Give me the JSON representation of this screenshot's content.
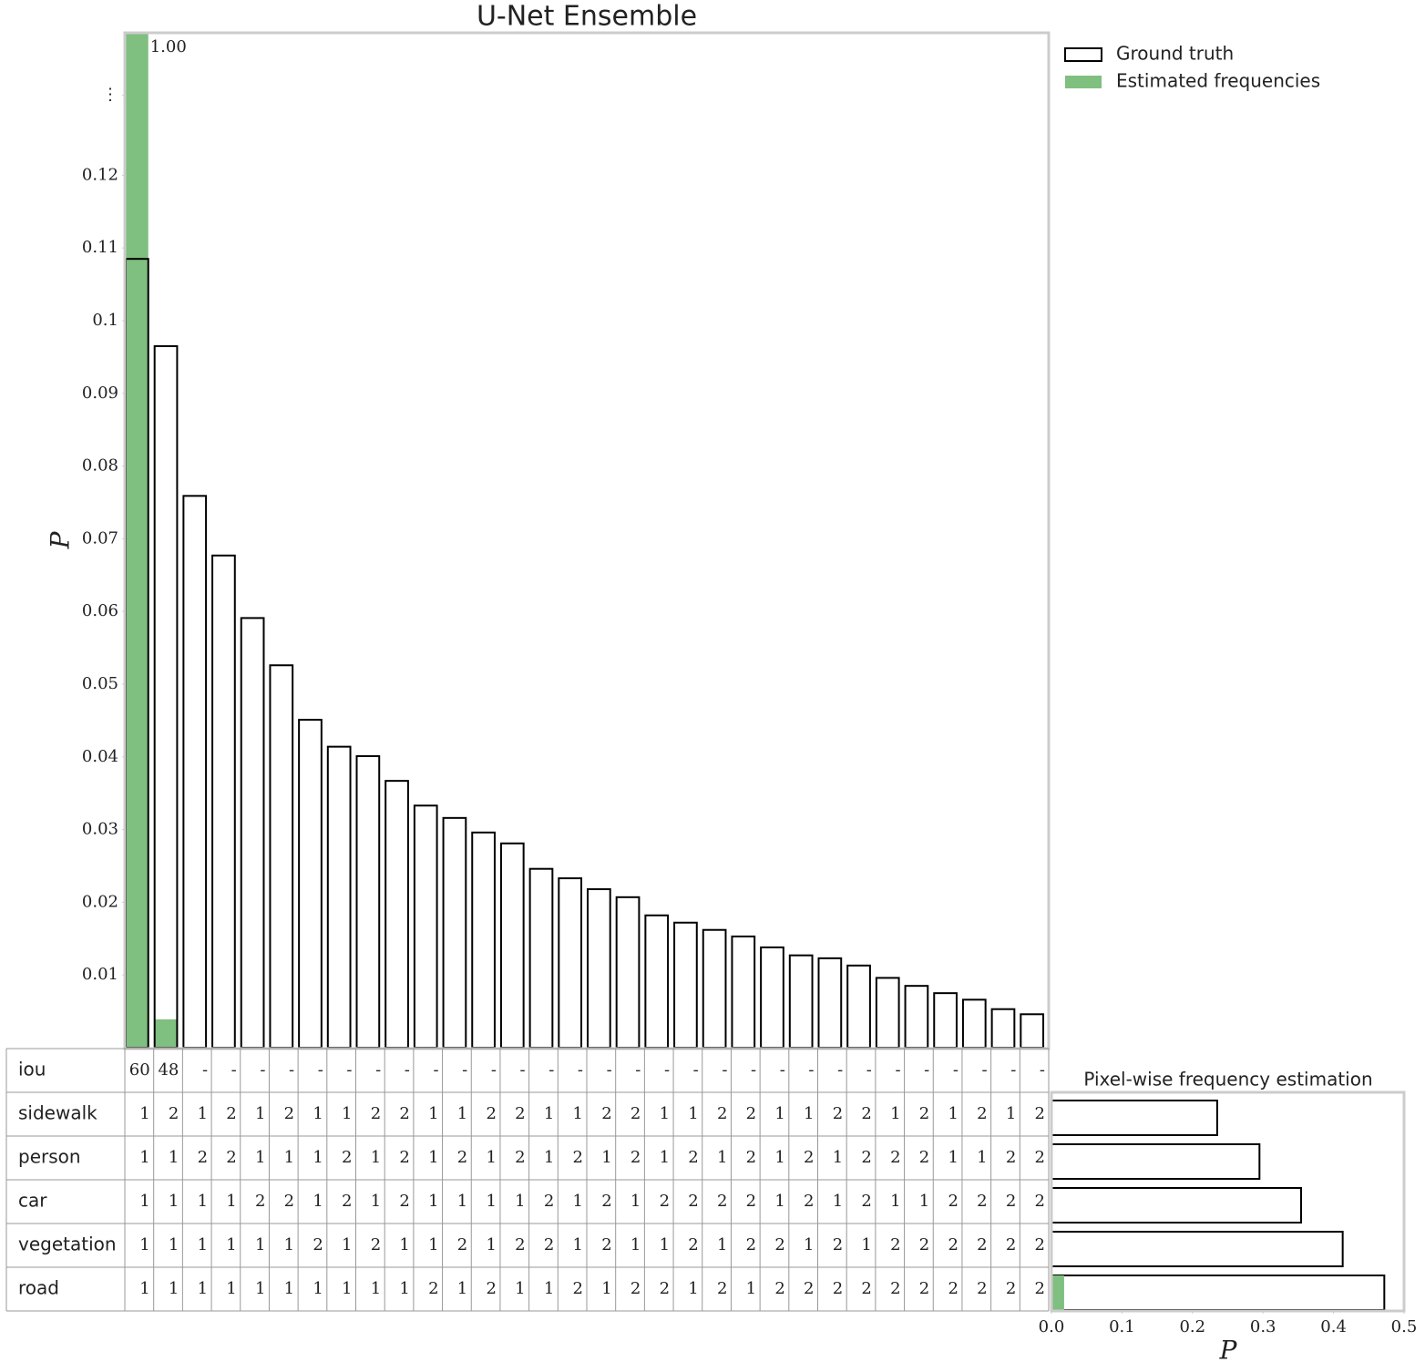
{
  "chart_data": [
    {
      "type": "bar",
      "title": "U-Net Ensemble",
      "ylabel": "P",
      "ylim": [
        0,
        0.1396
      ],
      "yticks": [
        0.01,
        0.02,
        0.03,
        0.04,
        0.05,
        0.06,
        0.07,
        0.08,
        0.09,
        0.1,
        0.11,
        0.12,
        {
          "value": 0.131,
          "label": "⋮"
        }
      ],
      "grid": false,
      "legend": "outside upper right",
      "series": [
        {
          "name": "Ground truth",
          "color": "#000000",
          "fill": false,
          "values": [
            0.1085,
            0.0965,
            0.0759,
            0.0677,
            0.0591,
            0.0526,
            0.0451,
            0.0414,
            0.0401,
            0.0367,
            0.0333,
            0.0316,
            0.0296,
            0.0281,
            0.0246,
            0.0233,
            0.0218,
            0.0207,
            0.0182,
            0.0172,
            0.0162,
            0.0153,
            0.0138,
            0.0127,
            0.0123,
            0.0113,
            0.0096,
            0.0085,
            0.0075,
            0.0066,
            0.0053,
            0.0046
          ]
        },
        {
          "name": "Estimated frequencies",
          "color": "#7fbf7f",
          "fill": true,
          "values": [
            1.0,
            0.0039,
            0,
            0,
            0,
            0,
            0,
            0,
            0,
            0,
            0,
            0,
            0,
            0,
            0,
            0,
            0,
            0,
            0,
            0,
            0,
            0,
            0,
            0,
            0,
            0,
            0,
            0,
            0,
            0,
            0,
            0
          ],
          "value_labels": [
            "1.00",
            null,
            null,
            null,
            null,
            null,
            null,
            null,
            null,
            null,
            null,
            null,
            null,
            null,
            null,
            null,
            null,
            null,
            null,
            null,
            null,
            null,
            null,
            null,
            null,
            null,
            null,
            null,
            null,
            null,
            null,
            null
          ]
        }
      ]
    },
    {
      "type": "barh",
      "title": "Pixel-wise frequency estimation",
      "xlabel": "P",
      "xlim": [
        0,
        0.5
      ],
      "xticks": [
        {
          "value": 0,
          "label": "0.0"
        },
        0.1,
        0.2,
        0.3,
        0.4,
        0.5
      ],
      "series": [
        {
          "color": "#000000",
          "fill": false,
          "values": [
            0.235,
            0.295,
            0.354,
            0.413,
            0.472
          ]
        },
        {
          "color": "#7fbf7f",
          "fill": true,
          "values": [
            0,
            0,
            0,
            0,
            0.018
          ]
        }
      ]
    }
  ],
  "table": {
    "rows": [
      {
        "label": "iou",
        "cells": [
          "60",
          "48",
          "-",
          "-",
          "-",
          "-",
          "-",
          "-",
          "-",
          "-",
          "-",
          "-",
          "-",
          "-",
          "-",
          "-",
          "-",
          "-",
          "-",
          "-",
          "-",
          "-",
          "-",
          "-",
          "-",
          "-",
          "-",
          "-",
          "-",
          "-",
          "-",
          "-"
        ]
      },
      {
        "label": "sidewalk",
        "cells": [
          1,
          2,
          1,
          2,
          1,
          2,
          1,
          1,
          2,
          2,
          1,
          1,
          2,
          2,
          1,
          1,
          2,
          2,
          1,
          1,
          2,
          2,
          1,
          1,
          2,
          2,
          1,
          2,
          1,
          2,
          1,
          2
        ]
      },
      {
        "label": "person",
        "cells": [
          1,
          1,
          2,
          2,
          1,
          1,
          1,
          2,
          1,
          2,
          1,
          2,
          1,
          2,
          1,
          2,
          1,
          2,
          1,
          2,
          1,
          2,
          1,
          2,
          1,
          2,
          2,
          2,
          1,
          1,
          2,
          2
        ]
      },
      {
        "label": "car",
        "cells": [
          1,
          1,
          1,
          1,
          2,
          2,
          1,
          2,
          1,
          2,
          1,
          1,
          1,
          1,
          2,
          1,
          2,
          1,
          2,
          2,
          2,
          2,
          1,
          2,
          1,
          2,
          1,
          1,
          2,
          2,
          2,
          2
        ]
      },
      {
        "label": "vegetation",
        "cells": [
          1,
          1,
          1,
          1,
          1,
          1,
          2,
          1,
          2,
          1,
          1,
          2,
          1,
          2,
          2,
          1,
          2,
          1,
          1,
          2,
          1,
          2,
          2,
          1,
          2,
          1,
          2,
          2,
          2,
          2,
          2,
          2
        ]
      },
      {
        "label": "road",
        "cells": [
          1,
          1,
          1,
          1,
          1,
          1,
          1,
          1,
          1,
          1,
          2,
          1,
          2,
          1,
          1,
          2,
          1,
          2,
          2,
          1,
          2,
          1,
          2,
          2,
          2,
          2,
          2,
          2,
          2,
          2,
          2,
          2
        ]
      }
    ]
  }
}
